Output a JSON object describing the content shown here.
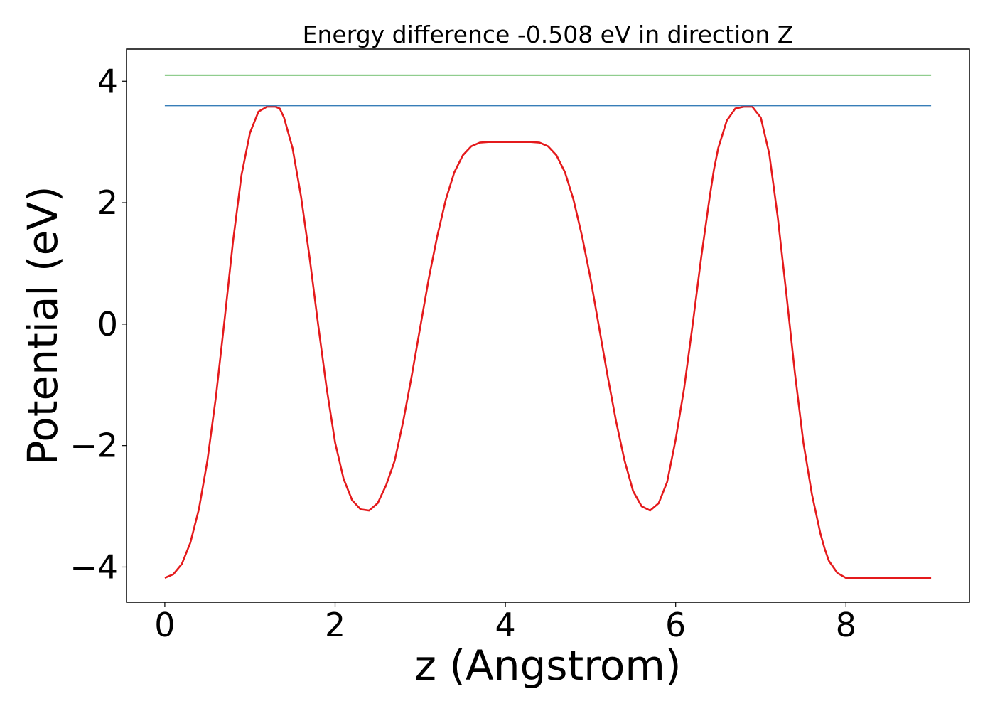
{
  "chart_data": {
    "type": "line",
    "title": "Energy difference -0.508 eV in direction Z",
    "xlabel": "z (Angstrom)",
    "ylabel": "Potential (eV)",
    "xlim": [
      -0.45,
      9.45
    ],
    "ylim": [
      -4.58,
      4.53
    ],
    "xticks": [
      0,
      2,
      4,
      6,
      8
    ],
    "xtick_labels": [
      "0",
      "2",
      "4",
      "6",
      "8"
    ],
    "yticks": [
      4,
      2,
      0,
      -2,
      -4
    ],
    "ytick_labels": [
      "4",
      "2",
      "0",
      "−2",
      "−4"
    ],
    "grid": false,
    "legend": "none",
    "series": [
      {
        "color": "#e41a1c",
        "x": [
          0.0,
          0.1,
          0.2,
          0.3,
          0.4,
          0.5,
          0.6,
          0.7,
          0.8,
          0.9,
          1.0,
          1.1,
          1.2,
          1.3,
          1.35,
          1.4,
          1.5,
          1.6,
          1.7,
          1.8,
          1.9,
          2.0,
          2.1,
          2.2,
          2.3,
          2.4,
          2.5,
          2.6,
          2.65,
          2.7,
          2.8,
          2.9,
          3.0,
          3.1,
          3.2,
          3.3,
          3.4,
          3.5,
          3.6,
          3.7,
          3.8,
          3.9,
          4.0,
          4.1,
          4.2,
          4.3,
          4.4,
          4.5,
          4.6,
          4.7,
          4.8,
          4.9,
          5.0,
          5.1,
          5.2,
          5.3,
          5.4,
          5.5,
          5.6,
          5.7,
          5.8,
          5.9,
          6.0,
          6.1,
          6.2,
          6.3,
          6.4,
          6.45,
          6.5,
          6.6,
          6.7,
          6.8,
          6.9,
          7.0,
          7.1,
          7.2,
          7.3,
          7.4,
          7.5,
          7.6,
          7.7,
          7.75,
          7.8,
          7.9,
          8.0,
          8.1,
          8.2,
          8.3,
          8.4,
          8.5,
          8.6,
          8.7,
          8.8,
          8.9,
          9.0
        ],
        "y": [
          -4.18,
          -4.12,
          -3.95,
          -3.6,
          -3.05,
          -2.25,
          -1.2,
          0.05,
          1.35,
          2.45,
          3.15,
          3.5,
          3.58,
          3.58,
          3.55,
          3.4,
          2.9,
          2.1,
          1.1,
          0.0,
          -1.05,
          -1.95,
          -2.55,
          -2.9,
          -3.05,
          -3.07,
          -2.95,
          -2.65,
          -2.45,
          -2.25,
          -1.6,
          -0.85,
          -0.05,
          0.75,
          1.45,
          2.05,
          2.5,
          2.78,
          2.93,
          2.99,
          3.0,
          3.0,
          3.0,
          3.0,
          3.0,
          3.0,
          2.99,
          2.93,
          2.78,
          2.5,
          2.05,
          1.45,
          0.75,
          -0.05,
          -0.85,
          -1.6,
          -2.25,
          -2.75,
          -3.0,
          -3.07,
          -2.95,
          -2.6,
          -1.9,
          -1.05,
          0.0,
          1.1,
          2.1,
          2.55,
          2.9,
          3.35,
          3.55,
          3.58,
          3.58,
          3.4,
          2.8,
          1.75,
          0.5,
          -0.8,
          -1.95,
          -2.8,
          -3.45,
          -3.7,
          -3.9,
          -4.1,
          -4.18,
          -4.18,
          -4.18,
          -4.18,
          -4.18,
          -4.18,
          -4.18,
          -4.18,
          -4.18,
          -4.18,
          -4.18
        ]
      },
      {
        "color": "#377eb8",
        "x": [
          0,
          9
        ],
        "y": [
          3.6,
          3.6
        ]
      },
      {
        "color": "#4daf4a",
        "x": [
          0,
          9
        ],
        "y": [
          4.1,
          4.1
        ]
      }
    ]
  }
}
